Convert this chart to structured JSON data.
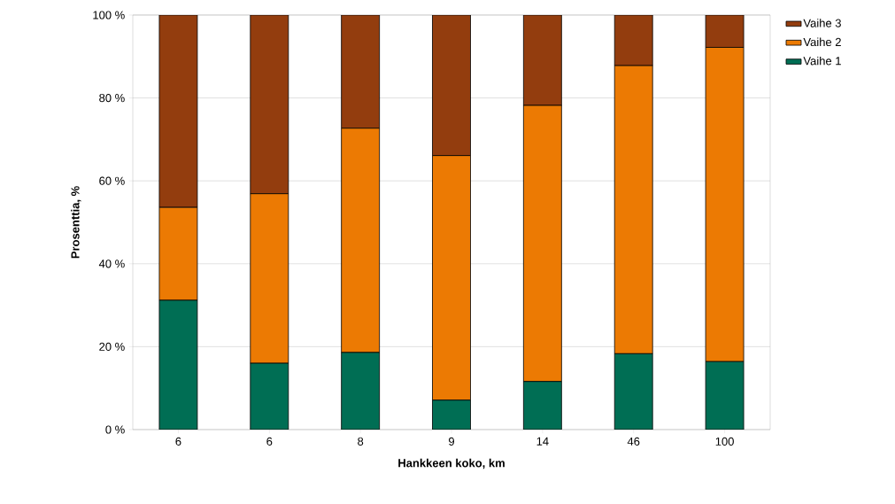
{
  "chart_data": {
    "type": "bar",
    "stacked": true,
    "xlabel": "Hankkeen koko, km",
    "ylabel": "Prosenttia, %",
    "categories": [
      "6",
      "6",
      "8",
      "9",
      "14",
      "46",
      "100"
    ],
    "series": [
      {
        "name": "Vaihe 1",
        "color": "#006e54",
        "values": [
          31.2,
          16.0,
          18.6,
          7.1,
          11.6,
          18.3,
          16.4
        ]
      },
      {
        "name": "Vaihe 2",
        "color": "#ec7a03",
        "values": [
          22.4,
          40.9,
          54.1,
          59.0,
          66.6,
          69.5,
          75.8
        ]
      },
      {
        "name": "Vaihe 3",
        "color": "#933d0e",
        "values": [
          46.4,
          43.1,
          27.3,
          33.9,
          21.8,
          12.2,
          7.8
        ]
      }
    ],
    "ylim": [
      0,
      100
    ],
    "yticks": [
      {
        "value": 0,
        "label": "0 %"
      },
      {
        "value": 20,
        "label": "20 %"
      },
      {
        "value": 40,
        "label": "40 %"
      },
      {
        "value": 60,
        "label": "60 %"
      },
      {
        "value": 80,
        "label": "80 %"
      },
      {
        "value": 100,
        "label": "100 %"
      }
    ],
    "grid": "y",
    "legend": "top right"
  }
}
